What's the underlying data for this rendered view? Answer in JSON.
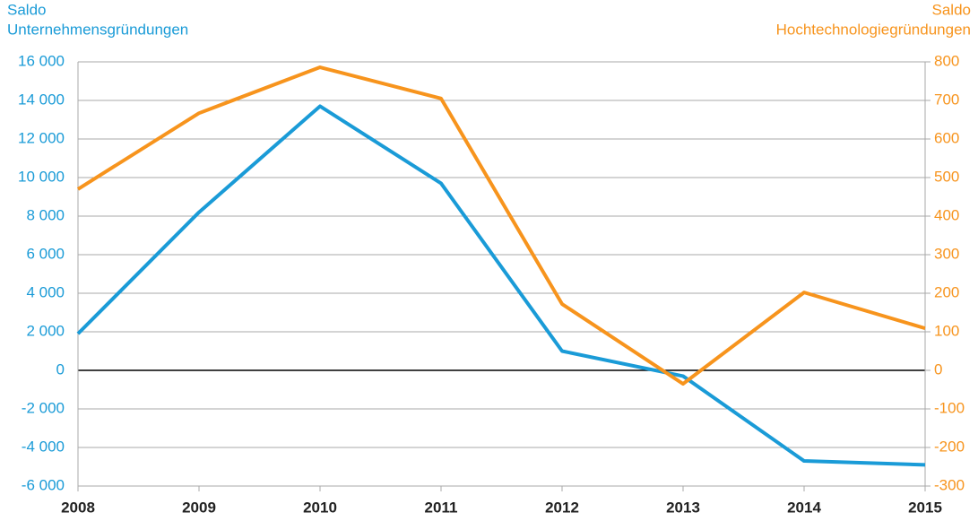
{
  "chart_data": {
    "type": "line",
    "y_label": [
      "Saldo",
      "Unternehmensgründungen"
    ],
    "y2_label": [
      "Saldo",
      "Hochtechnologiegründungen"
    ],
    "x": [
      2008,
      2009,
      2010,
      2011,
      2012,
      2013,
      2014,
      2015
    ],
    "xlim": [
      2008,
      2015
    ],
    "xticks": [
      2008,
      2009,
      2010,
      2011,
      2012,
      2013,
      2014,
      2015
    ],
    "series": [
      {
        "name": "Saldo Unternehmensgründungen",
        "color": "#1a9bd7",
        "axis": "y",
        "values": [
          1900,
          8200,
          13700,
          9700,
          1000,
          -300,
          -4700,
          -4900
        ]
      },
      {
        "name": "Saldo Hochtechnologiegründungen",
        "color": "#f7941d",
        "axis": "y2",
        "values": [
          470,
          667,
          786,
          705,
          172,
          -35,
          202,
          109
        ]
      }
    ],
    "ylim": [
      -6000,
      16000
    ],
    "yticks": [
      {
        "value": -6000,
        "label": "-6 000"
      },
      {
        "value": -4000,
        "label": "-4 000"
      },
      {
        "value": -2000,
        "label": "-2 000"
      },
      0,
      {
        "value": 2000,
        "label": "2 000"
      },
      {
        "value": 4000,
        "label": "4 000"
      },
      {
        "value": 6000,
        "label": "6 000"
      },
      {
        "value": 8000,
        "label": "8 000"
      },
      {
        "value": 10000,
        "label": "10 000"
      },
      {
        "value": 12000,
        "label": "12 000"
      },
      {
        "value": 14000,
        "label": "14 000"
      },
      {
        "value": 16000,
        "label": "16 000"
      }
    ],
    "y2lim": [
      -300,
      800
    ],
    "y2ticks": [
      -300,
      -200,
      -100,
      0,
      100,
      200,
      300,
      400,
      500,
      600,
      700,
      800
    ],
    "grid": true
  }
}
